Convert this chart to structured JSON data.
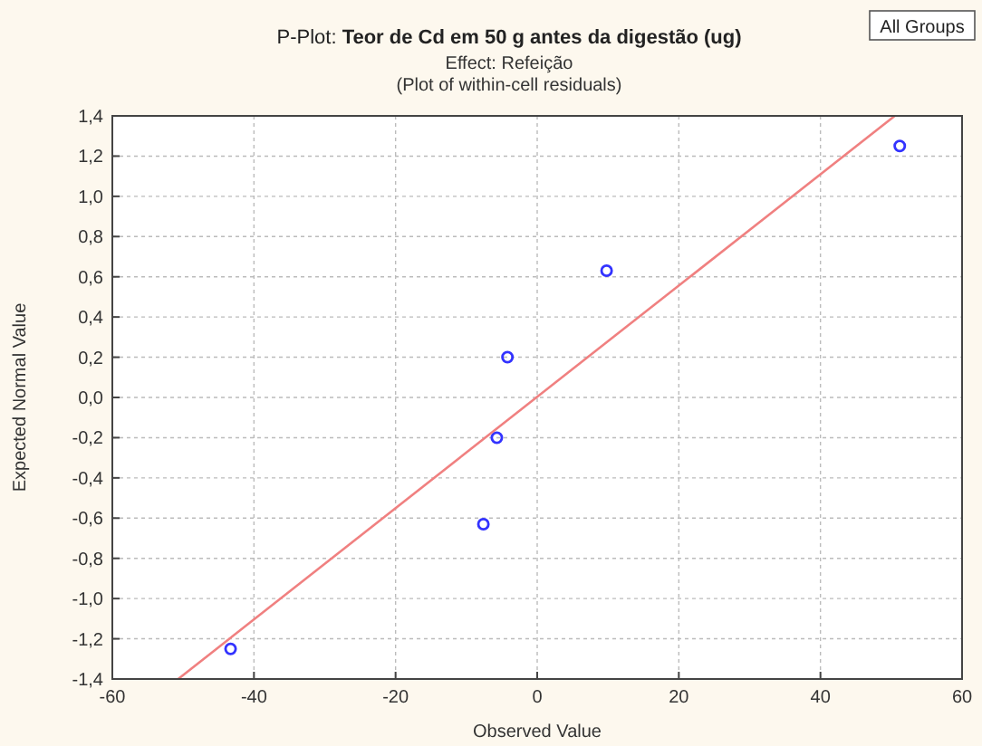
{
  "chart_data": {
    "type": "scatter",
    "title": "P-Plot: Teor de Cd em 50 g antes da digestão (ug)",
    "subtitle": "Effect: Refeição\n(Plot of within-cell residuals)",
    "xlabel": "Observed Value",
    "ylabel": "Expected Normal Value",
    "annotations": [
      "All Groups"
    ],
    "xlim": [
      -60,
      60
    ],
    "xticks": [
      -60,
      -40,
      -20,
      0,
      20,
      40,
      60
    ],
    "ylim": [
      -1.4,
      1.4
    ],
    "yticks": [
      {
        "value": -1.4,
        "label": "-1,4"
      },
      {
        "value": -1.2,
        "label": "-1,2"
      },
      {
        "value": -1,
        "label": "-1,0"
      },
      {
        "value": -0.8,
        "label": "-0,8"
      },
      {
        "value": -0.6,
        "label": "-0,6"
      },
      {
        "value": -0.4,
        "label": "-0,4"
      },
      {
        "value": -0.2,
        "label": "-0,2"
      },
      {
        "value": 0,
        "label": "0,0"
      },
      {
        "value": 0.2,
        "label": "0,2"
      },
      {
        "value": 0.4,
        "label": "0,4"
      },
      {
        "value": 0.6,
        "label": "0,6"
      },
      {
        "value": 0.8,
        "label": "0,8"
      },
      {
        "value": 1,
        "label": "1,0"
      },
      {
        "value": 1.2,
        "label": "1,2"
      },
      {
        "value": 1.4,
        "label": "1,4"
      }
    ],
    "grid": true,
    "series": [
      {
        "marker": "circle",
        "color": "#3333ff",
        "x": [
          -43.3,
          -7.6,
          -5.7,
          -4.2,
          9.8,
          51.2
        ],
        "values": [
          -1.25,
          -0.63,
          -0.2,
          0.2,
          0.63,
          1.25
        ]
      },
      {
        "type": "line",
        "color": "#f08080",
        "x": [
          -50.7,
          50.5
        ],
        "values": [
          -1.4,
          1.4
        ]
      }
    ]
  }
}
